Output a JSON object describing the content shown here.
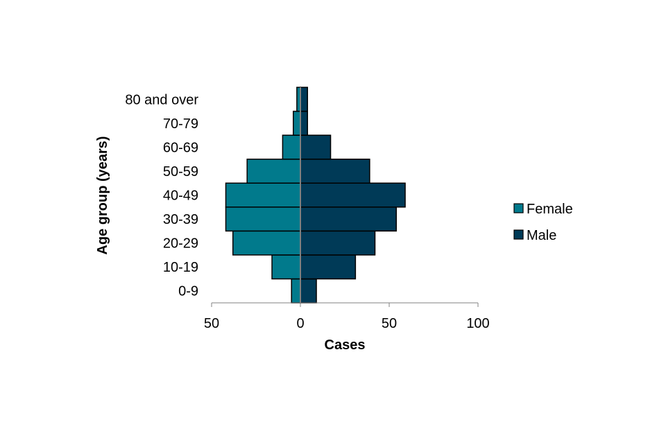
{
  "chart_data": {
    "type": "bar",
    "orientation": "horizontal",
    "chart_style": "population-pyramid",
    "categories": [
      "0-9",
      "10-19",
      "20-29",
      "30-39",
      "40-49",
      "50-59",
      "60-69",
      "70-79",
      "80 and over"
    ],
    "series": [
      {
        "name": "Female",
        "values": [
          5,
          16,
          38,
          42,
          42,
          30,
          10,
          4,
          2
        ],
        "color": "#017A8C",
        "side": "left"
      },
      {
        "name": "Male",
        "values": [
          9,
          31,
          42,
          54,
          59,
          39,
          17,
          4,
          4
        ],
        "color": "#003A57",
        "side": "right"
      }
    ],
    "xlabel": "Cases",
    "ylabel": "Age group (years)",
    "xlim": [
      -50,
      100
    ],
    "x_ticks": [
      {
        "value": -50,
        "label": "50"
      },
      {
        "value": 0,
        "label": "0"
      },
      {
        "value": 50,
        "label": "50"
      },
      {
        "value": 100,
        "label": "100"
      }
    ],
    "grid": false,
    "legend_position": "right",
    "colors": {
      "female": "#017A8C",
      "male": "#003A57",
      "bar_border": "#000000",
      "axis": "#808080",
      "center_line": "#808080"
    }
  }
}
